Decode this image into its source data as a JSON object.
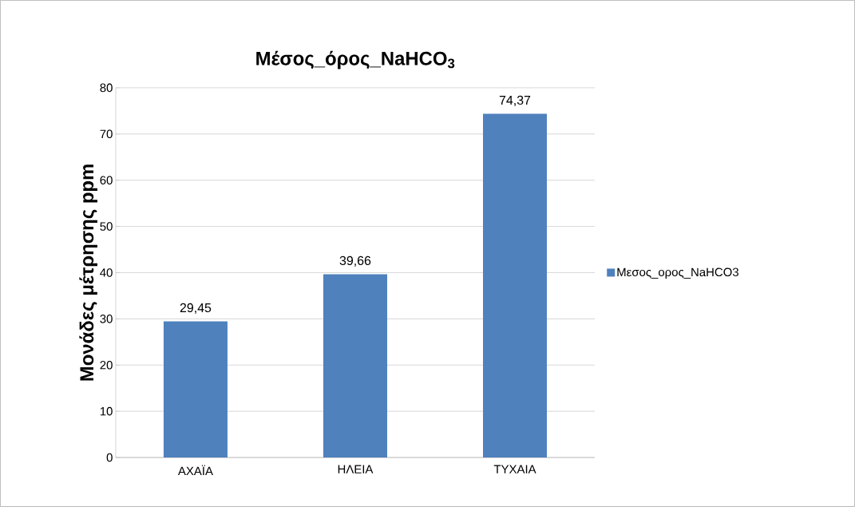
{
  "chart_data": {
    "type": "bar",
    "title": "Μέσος_όρος_NaHCO$_{3}$",
    "ylabel": "Μονάδες μέτρησης ppm",
    "categories": [
      "ΑΧΑΪΑ",
      "ΗΛΕΙΑ",
      "ΤΥΧΑΙΑ"
    ],
    "series": [
      {
        "name": "Μεσος_ορος_NaHCO3",
        "color": "#4f81bd",
        "values": [
          29.45,
          39.66,
          74.37
        ],
        "value_labels": [
          "29,45",
          "39,66",
          "74,37"
        ]
      }
    ],
    "ylim": [
      0,
      80
    ],
    "yticks": [
      0,
      10,
      20,
      30,
      40,
      50,
      60,
      70,
      80
    ],
    "grid": "y",
    "legend": "right"
  }
}
